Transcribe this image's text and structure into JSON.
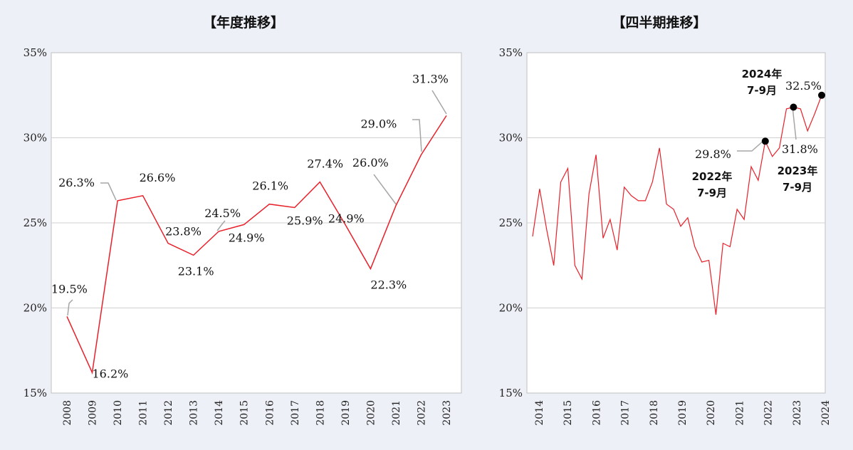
{
  "chart_data": [
    {
      "type": "line",
      "title": "【年度推移】",
      "ylim": [
        15,
        35
      ],
      "yticks": [
        15,
        20,
        25,
        30,
        35
      ],
      "ytick_labels": [
        "15%",
        "20%",
        "25%",
        "30%",
        "35%"
      ],
      "categories": [
        "2008",
        "2009",
        "2010",
        "2011",
        "2012",
        "2013",
        "2014",
        "2015",
        "2016",
        "2017",
        "2018",
        "2019",
        "2020",
        "2021",
        "2022",
        "2023"
      ],
      "values": [
        19.5,
        16.2,
        26.3,
        26.6,
        23.8,
        23.1,
        24.5,
        24.9,
        26.1,
        25.9,
        27.4,
        24.9,
        22.3,
        26.0,
        29.0,
        31.3
      ],
      "data_labels": [
        "19.5%",
        "16.2%",
        "26.3%",
        "26.6%",
        "23.8%",
        "23.1%",
        "24.5%",
        "24.9%",
        "26.1%",
        "25.9%",
        "27.4%",
        "24.9%",
        "22.3%",
        "26.0%",
        "29.0%",
        "31.3%"
      ],
      "line_color": "#e8202a",
      "grid": true
    },
    {
      "type": "line",
      "title": "【四半期推移】",
      "ylim": [
        15,
        35
      ],
      "yticks": [
        15,
        20,
        25,
        30,
        35
      ],
      "ytick_labels": [
        "15%",
        "20%",
        "25%",
        "30%",
        "35%"
      ],
      "xtick_labels": [
        "2014",
        "2015",
        "2016",
        "2017",
        "2018",
        "2019",
        "2020",
        "2021",
        "2022",
        "2023",
        "2024"
      ],
      "values": [
        24.2,
        27.0,
        24.6,
        22.5,
        27.4,
        28.2,
        22.5,
        21.7,
        26.7,
        29.0,
        24.1,
        25.2,
        23.4,
        27.1,
        26.6,
        26.3,
        26.3,
        27.4,
        29.4,
        26.1,
        25.8,
        24.8,
        25.3,
        23.6,
        22.7,
        22.8,
        19.6,
        23.8,
        23.6,
        25.8,
        25.2,
        28.3,
        27.5,
        29.8,
        28.9,
        29.4,
        31.7,
        31.8,
        31.7,
        30.4,
        31.4,
        32.5
      ],
      "highlights": [
        {
          "index": 33,
          "value_label": "29.8%",
          "period_line1": "2022年",
          "period_line2": "7-9月"
        },
        {
          "index": 37,
          "value_label": "31.8%",
          "period_line1": "2023年",
          "period_line2": "7-9月"
        },
        {
          "index": 41,
          "value_label": "32.5%",
          "period_line1": "2024年",
          "period_line2": "7-9月"
        }
      ],
      "line_color": "#e8202a",
      "grid": true
    }
  ]
}
